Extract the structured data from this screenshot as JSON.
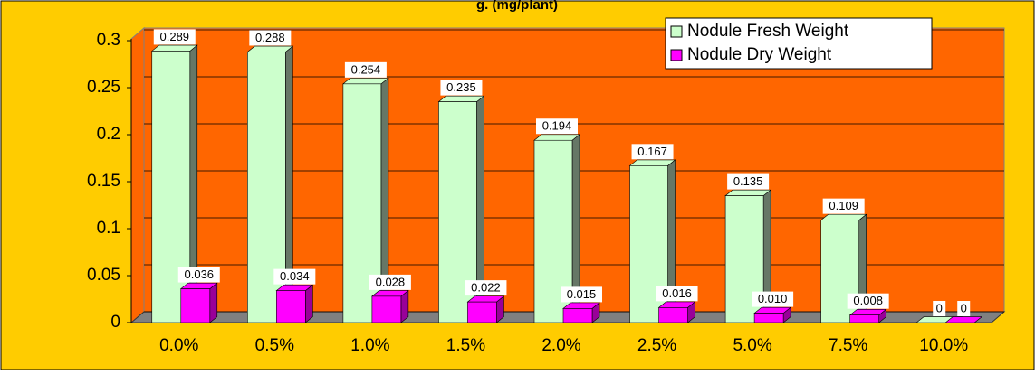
{
  "chart_data": {
    "type": "bar3d",
    "title": "g. (mg/plant)",
    "categories": [
      "0.0%",
      "0.5%",
      "1.0%",
      "1.5%",
      "2.0%",
      "2.5%",
      "5.0%",
      "7.5%",
      "10.0%"
    ],
    "series": [
      {
        "name": "Nodule Fresh Weight",
        "color": "#CCFFCC",
        "values": [
          0.289,
          0.288,
          0.254,
          0.235,
          0.194,
          0.167,
          0.135,
          0.109,
          0
        ]
      },
      {
        "name": "Nodule Dry Weight",
        "color": "#FF00FF",
        "values": [
          0.036,
          0.034,
          0.028,
          0.022,
          0.015,
          0.016,
          0.01,
          0.008,
          0
        ],
        "value_labels": [
          "0.036",
          "0.034",
          "0.028",
          "0.022",
          "0.015",
          "0.016",
          "0.010",
          "0.008",
          "0"
        ]
      }
    ],
    "ylim": [
      0,
      0.3
    ],
    "yticks": [
      0,
      0.05,
      0.1,
      0.15,
      0.2,
      0.25,
      0.3
    ],
    "grid": true,
    "legend": "top-right"
  }
}
